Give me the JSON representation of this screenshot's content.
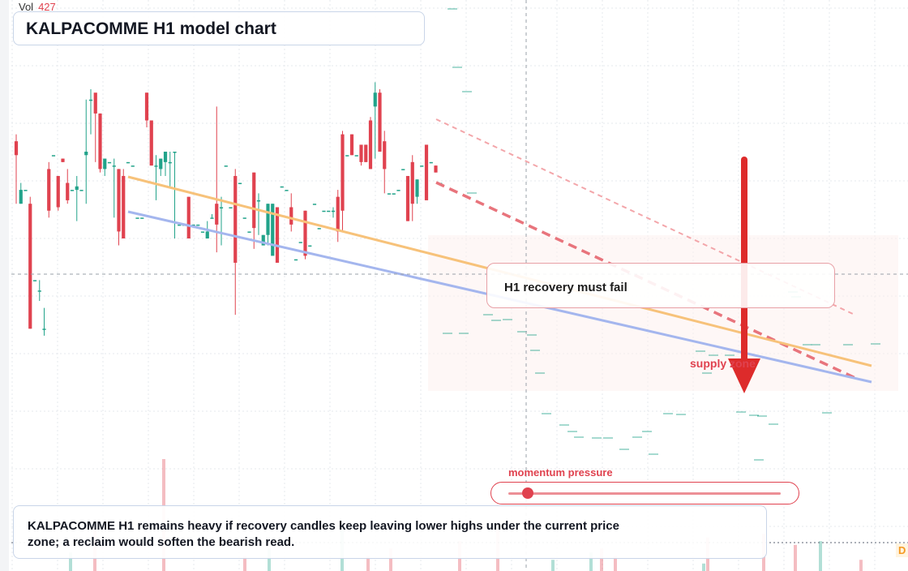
{
  "header": {
    "vol_label": "Vol",
    "vol_value": "427",
    "title": "KALPACOMME H1 model chart"
  },
  "annotations": {
    "callout": "H1 recovery must fail",
    "zone_label": "supply zone",
    "momentum_label": "momentum pressure",
    "momentum_level": 0.07,
    "note": "KALPACOMME H1 remains heavy if recovery candles keep leaving lower highs under the current price zone; a reclaim would soften the bearish read.",
    "corner_badge": "D"
  },
  "colors": {
    "up": "#22a38a",
    "down": "#e0424f",
    "trend_upper": "#f7c27a",
    "trend_lower": "#a4b6ee",
    "arrow": "#dd2b2b",
    "zone_fill": "#fdf0ee"
  },
  "chart_data": {
    "type": "candlestick",
    "timeframe": "H1",
    "ylim": [
      0,
      100
    ],
    "candles": [
      [
        78,
        74,
        80,
        60
      ],
      [
        60,
        64,
        66,
        60
      ],
      [
        64,
        64,
        64,
        64
      ],
      [
        60,
        24,
        62,
        24
      ],
      [
        38,
        38,
        38,
        38
      ],
      [
        35,
        35,
        38,
        32
      ],
      [
        24,
        24,
        30,
        22
      ],
      [
        70,
        58,
        72,
        56
      ],
      [
        74,
        74,
        74,
        74
      ],
      [
        68,
        59,
        68,
        58
      ],
      [
        73,
        72,
        73,
        72
      ],
      [
        66,
        61,
        70,
        60
      ],
      [
        64,
        64,
        64,
        64
      ],
      [
        64,
        65,
        68,
        55
      ],
      [
        64,
        64,
        64,
        64
      ],
      [
        74,
        75,
        90,
        60
      ],
      [
        90,
        90,
        93,
        80
      ],
      [
        92,
        86,
        90,
        72
      ],
      [
        86,
        70,
        86,
        69
      ],
      [
        70,
        73,
        73,
        68
      ],
      [
        72,
        72,
        72,
        72
      ],
      [
        71,
        71,
        73,
        56
      ],
      [
        70,
        52,
        70,
        48
      ],
      [
        68,
        50,
        70,
        52
      ],
      [
        72,
        72,
        72,
        72
      ],
      [
        71,
        71,
        71,
        71
      ],
      [
        56,
        56,
        56,
        56
      ],
      [
        56,
        56,
        56,
        56
      ],
      [
        92,
        84,
        92,
        82
      ],
      [
        84,
        71,
        84,
        71
      ],
      [
        71,
        71,
        74,
        61
      ],
      [
        70,
        73,
        73,
        68
      ],
      [
        72,
        75,
        73,
        68
      ],
      [
        72,
        72,
        75,
        65
      ],
      [
        75,
        75,
        75,
        50
      ],
      [
        54,
        54,
        54,
        54
      ],
      [
        54,
        54,
        54,
        54
      ],
      [
        62,
        50,
        62,
        50
      ],
      [
        54,
        54,
        54,
        54
      ],
      [
        54,
        54,
        54,
        54
      ],
      [
        52,
        52,
        52,
        52
      ],
      [
        50,
        52,
        55,
        52
      ],
      [
        56,
        56,
        57,
        56
      ],
      [
        60,
        54,
        88,
        46
      ],
      [
        59,
        59,
        62,
        48
      ],
      [
        71,
        71,
        71,
        71
      ],
      [
        59,
        59,
        59,
        59
      ],
      [
        68,
        43,
        70,
        28
      ],
      [
        66,
        66,
        66,
        66
      ],
      [
        56,
        56,
        56,
        56
      ],
      [
        52,
        52,
        52,
        52
      ],
      [
        69,
        53,
        69,
        47
      ],
      [
        61,
        61,
        63,
        51
      ],
      [
        48,
        51,
        51,
        48
      ],
      [
        51,
        60,
        60,
        48
      ],
      [
        45,
        60,
        60,
        46
      ],
      [
        59,
        43,
        59,
        44
      ],
      [
        65,
        65,
        65,
        65
      ],
      [
        64,
        64,
        64,
        64
      ],
      [
        59,
        54,
        63,
        52
      ],
      [
        44,
        44,
        44,
        44
      ],
      [
        49,
        49,
        49,
        49
      ],
      [
        58,
        45,
        58,
        44
      ],
      [
        48,
        48,
        48,
        48
      ],
      [
        60,
        60,
        60,
        60
      ],
      [
        53,
        53,
        53,
        53
      ],
      [
        58,
        58,
        58,
        58
      ],
      [
        58,
        58,
        58,
        58
      ],
      [
        58,
        58,
        59,
        56
      ],
      [
        62,
        52,
        64,
        49
      ],
      [
        80,
        58,
        81,
        52
      ],
      [
        74,
        74,
        74,
        74
      ],
      [
        80,
        74,
        80,
        74
      ],
      [
        74,
        74,
        74,
        74
      ],
      [
        77,
        72,
        77,
        71
      ],
      [
        77,
        72,
        77,
        72
      ],
      [
        84,
        70,
        85,
        70
      ],
      [
        88,
        92,
        95,
        73
      ],
      [
        92,
        75,
        93,
        80
      ],
      [
        78,
        70,
        81,
        63
      ],
      [
        63,
        63,
        63,
        63
      ],
      [
        63,
        63,
        63,
        63
      ],
      [
        64,
        64,
        64,
        64
      ],
      [
        70,
        70,
        70,
        70
      ],
      [
        68,
        55,
        68,
        55
      ],
      [
        72,
        60,
        74,
        55
      ],
      [
        62,
        67,
        67,
        60
      ],
      [
        71,
        71,
        71,
        71
      ],
      [
        77,
        61,
        77,
        61
      ],
      [
        72,
        72,
        72,
        72
      ],
      [
        71,
        69,
        71,
        69
      ],
      [
        66,
        66,
        66,
        66
      ]
    ],
    "volume": [
      5,
      12,
      8,
      3,
      6,
      4,
      2,
      9,
      7,
      5,
      11,
      4,
      6,
      30,
      10,
      8,
      3,
      6,
      12,
      4
    ]
  }
}
